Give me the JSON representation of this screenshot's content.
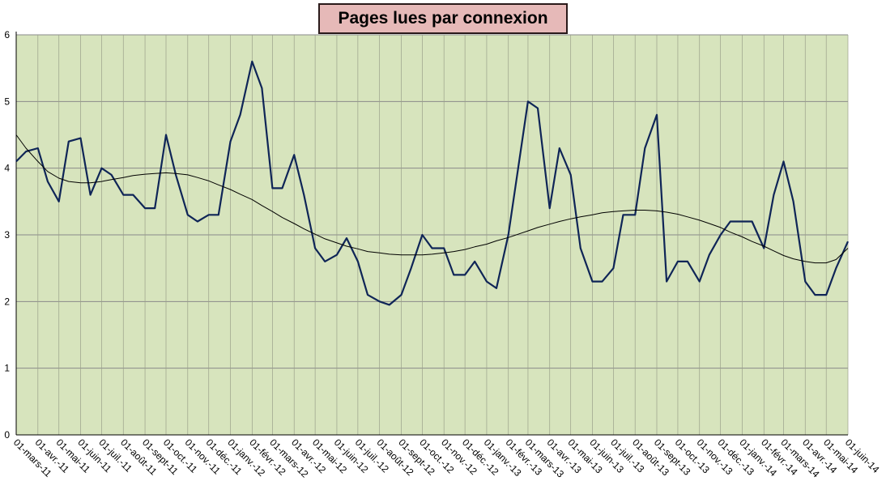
{
  "chart_data": {
    "type": "line",
    "title": "Pages lues par connexion",
    "x": [
      "2011-03-01",
      "2011-03-15",
      "2011-04-01",
      "2011-04-15",
      "2011-05-01",
      "2011-05-15",
      "2011-06-01",
      "2011-06-15",
      "2011-07-01",
      "2011-07-15",
      "2011-08-01",
      "2011-08-15",
      "2011-09-01",
      "2011-09-15",
      "2011-10-01",
      "2011-10-15",
      "2011-11-01",
      "2011-11-15",
      "2011-12-01",
      "2011-12-15",
      "2012-01-01",
      "2012-01-15",
      "2012-02-01",
      "2012-02-15",
      "2012-03-01",
      "2012-03-15",
      "2012-04-01",
      "2012-04-15",
      "2012-05-01",
      "2012-05-15",
      "2012-06-01",
      "2012-06-15",
      "2012-07-01",
      "2012-07-15",
      "2012-08-01",
      "2012-08-15",
      "2012-09-01",
      "2012-09-15",
      "2012-10-01",
      "2012-10-15",
      "2012-11-01",
      "2012-11-15",
      "2012-12-01",
      "2012-12-15",
      "2013-01-01",
      "2013-01-15",
      "2013-02-01",
      "2013-02-15",
      "2013-03-01",
      "2013-03-15",
      "2013-04-01",
      "2013-04-15",
      "2013-05-01",
      "2013-05-15",
      "2013-06-01",
      "2013-06-15",
      "2013-07-01",
      "2013-07-15",
      "2013-08-01",
      "2013-08-15",
      "2013-09-01",
      "2013-09-15",
      "2013-10-01",
      "2013-10-15",
      "2013-11-01",
      "2013-11-15",
      "2013-12-01",
      "2013-12-15",
      "2014-01-01",
      "2014-01-15",
      "2014-02-01",
      "2014-02-15",
      "2014-03-01",
      "2014-03-15",
      "2014-04-01",
      "2014-04-15",
      "2014-05-01",
      "2014-05-15",
      "2014-06-01"
    ],
    "series": [
      {
        "color": "#0f2557",
        "values": [
          4.1,
          4.25,
          4.3,
          3.8,
          3.5,
          4.4,
          4.45,
          3.6,
          4.0,
          3.9,
          3.6,
          3.6,
          3.4,
          3.4,
          4.5,
          3.9,
          3.3,
          3.2,
          3.3,
          3.3,
          4.4,
          4.8,
          5.6,
          5.2,
          3.7,
          3.7,
          4.2,
          3.6,
          2.8,
          2.6,
          2.7,
          2.95,
          2.6,
          2.1,
          2.0,
          1.95,
          2.1,
          2.5,
          3.0,
          2.8,
          2.8,
          2.4,
          2.4,
          2.6,
          2.3,
          2.2,
          3.0,
          4.0,
          5.0,
          4.9,
          3.4,
          4.3,
          3.9,
          2.8,
          2.3,
          2.3,
          2.5,
          3.3,
          3.3,
          4.3,
          4.8,
          2.3,
          2.6,
          2.6,
          2.3,
          2.7,
          3.0,
          3.2,
          3.2,
          3.2,
          2.8,
          3.6,
          4.1,
          3.5,
          2.3,
          2.1,
          2.1,
          2.5,
          2.9
        ]
      },
      {
        "color": "#000000",
        "values": [
          4.5,
          4.3,
          4.1,
          3.95,
          3.85,
          3.8,
          3.78,
          3.78,
          3.8,
          3.83,
          3.86,
          3.89,
          3.91,
          3.92,
          3.93,
          3.92,
          3.9,
          3.86,
          3.81,
          3.75,
          3.68,
          3.61,
          3.53,
          3.44,
          3.35,
          3.26,
          3.17,
          3.09,
          3.01,
          2.94,
          2.88,
          2.83,
          2.79,
          2.75,
          2.73,
          2.71,
          2.7,
          2.7,
          2.7,
          2.71,
          2.73,
          2.75,
          2.78,
          2.82,
          2.86,
          2.91,
          2.96,
          3.01,
          3.06,
          3.11,
          3.16,
          3.2,
          3.24,
          3.27,
          3.3,
          3.33,
          3.35,
          3.36,
          3.37,
          3.37,
          3.36,
          3.34,
          3.31,
          3.27,
          3.22,
          3.17,
          3.11,
          3.04,
          2.97,
          2.9,
          2.83,
          2.76,
          2.69,
          2.64,
          2.6,
          2.58,
          2.58,
          2.63,
          2.8
        ]
      }
    ],
    "xlim": [
      "2011-03-01",
      "2014-06-01"
    ],
    "xticks": [
      {
        "value": "2011-03-01",
        "label": "01-mars-11"
      },
      {
        "value": "2011-04-01",
        "label": "01-avr.-11"
      },
      {
        "value": "2011-05-01",
        "label": "01-mai-11"
      },
      {
        "value": "2011-06-01",
        "label": "01-juin-11"
      },
      {
        "value": "2011-07-01",
        "label": "01-juil.-11"
      },
      {
        "value": "2011-08-01",
        "label": "01-août-11"
      },
      {
        "value": "2011-09-01",
        "label": "01-sept-11"
      },
      {
        "value": "2011-10-01",
        "label": "01-oct.-11"
      },
      {
        "value": "2011-11-01",
        "label": "01-nov.-11"
      },
      {
        "value": "2011-12-01",
        "label": "01-déc.-11"
      },
      {
        "value": "2012-01-01",
        "label": "01-janv.-12"
      },
      {
        "value": "2012-02-01",
        "label": "01-févr.-12"
      },
      {
        "value": "2012-03-01",
        "label": "01-mars-12"
      },
      {
        "value": "2012-04-01",
        "label": "01-avr.-12"
      },
      {
        "value": "2012-05-01",
        "label": "01-mai-12"
      },
      {
        "value": "2012-06-01",
        "label": "01-juin-12"
      },
      {
        "value": "2012-07-01",
        "label": "01-juil.-12"
      },
      {
        "value": "2012-08-01",
        "label": "01-août-12"
      },
      {
        "value": "2012-09-01",
        "label": "01-sept-12"
      },
      {
        "value": "2012-10-01",
        "label": "01-oct.-12"
      },
      {
        "value": "2012-11-01",
        "label": "01-nov.-12"
      },
      {
        "value": "2012-12-01",
        "label": "01-déc.-12"
      },
      {
        "value": "2013-01-01",
        "label": "01-janv.-13"
      },
      {
        "value": "2013-02-01",
        "label": "01-févr.-13"
      },
      {
        "value": "2013-03-01",
        "label": "01-mars-13"
      },
      {
        "value": "2013-04-01",
        "label": "01-avr.-13"
      },
      {
        "value": "2013-05-01",
        "label": "01-mai-13"
      },
      {
        "value": "2013-06-01",
        "label": "01-juin-13"
      },
      {
        "value": "2013-07-01",
        "label": "01-juil.-13"
      },
      {
        "value": "2013-08-01",
        "label": "01-août-13"
      },
      {
        "value": "2013-09-01",
        "label": "01-sept-13"
      },
      {
        "value": "2013-10-01",
        "label": "01-oct.-13"
      },
      {
        "value": "2013-11-01",
        "label": "01-nov.-13"
      },
      {
        "value": "2013-12-01",
        "label": "01-déc.-13"
      },
      {
        "value": "2014-01-01",
        "label": "01-janv.-14"
      },
      {
        "value": "2014-02-01",
        "label": "01-févr.-14"
      },
      {
        "value": "2014-03-01",
        "label": "01-mars-14"
      },
      {
        "value": "2014-04-01",
        "label": "01-avr.-14"
      },
      {
        "value": "2014-05-01",
        "label": "01-mai-14"
      },
      {
        "value": "2014-06-01",
        "label": "01-juin-14"
      }
    ],
    "ylim": [
      0,
      6
    ],
    "yticks": [
      0,
      1,
      2,
      3,
      4,
      5,
      6
    ],
    "grid": true
  }
}
